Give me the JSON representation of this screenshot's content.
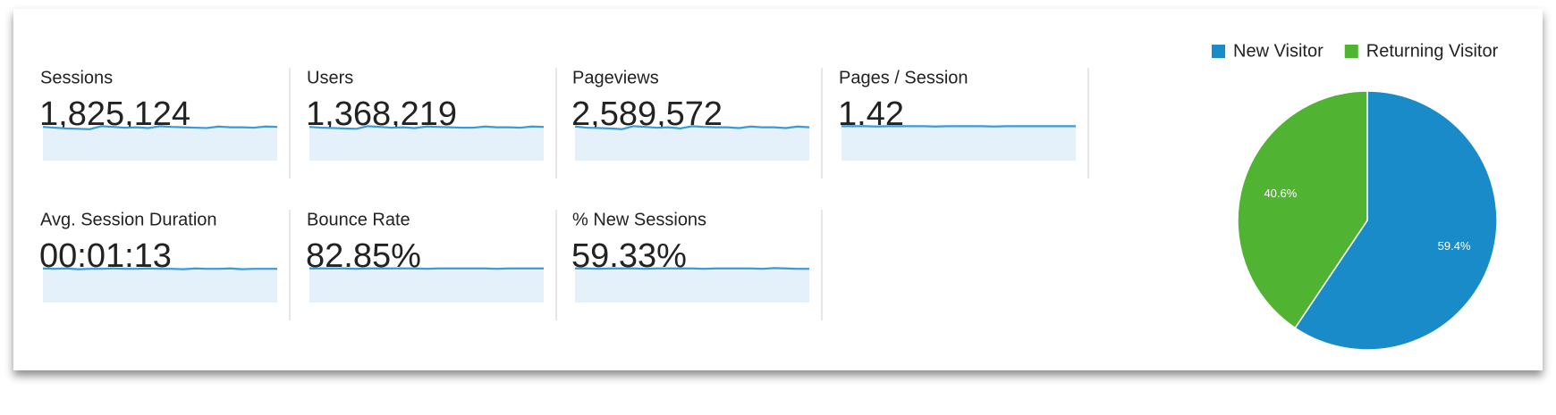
{
  "metrics": [
    {
      "label": "Sessions",
      "value": "1,825,124",
      "sparkline": [
        90,
        88,
        86,
        85,
        84,
        92,
        90,
        88,
        89,
        87,
        92,
        90,
        89,
        88,
        87,
        91,
        89,
        89,
        88,
        91,
        90
      ]
    },
    {
      "label": "Users",
      "value": "1,368,219",
      "sparkline": [
        90,
        88,
        87,
        86,
        85,
        92,
        90,
        88,
        89,
        87,
        91,
        90,
        89,
        88,
        88,
        91,
        89,
        89,
        88,
        91,
        90
      ]
    },
    {
      "label": "Pageviews",
      "value": "2,589,572",
      "sparkline": [
        91,
        88,
        87,
        86,
        84,
        92,
        90,
        88,
        89,
        86,
        92,
        90,
        89,
        89,
        87,
        91,
        89,
        89,
        87,
        91,
        89
      ]
    },
    {
      "label": "Pages / Session",
      "value": "1.42",
      "sparkline": [
        92,
        92,
        92,
        91,
        92,
        92,
        92,
        92,
        91,
        92,
        92,
        92,
        92,
        91,
        92,
        92,
        92,
        92,
        92,
        92,
        92
      ]
    },
    {
      "label": "Avg. Session Duration",
      "value": "00:01:13",
      "sparkline": [
        91,
        90,
        91,
        89,
        90,
        90,
        91,
        90,
        90,
        91,
        90,
        90,
        89,
        91,
        90,
        90,
        91,
        89,
        90,
        90,
        90
      ]
    },
    {
      "label": "Bounce Rate",
      "value": "82.85%",
      "sparkline": [
        91,
        91,
        91,
        91,
        90,
        91,
        91,
        91,
        91,
        91,
        90,
        91,
        91,
        91,
        91,
        91,
        90,
        91,
        91,
        91,
        91
      ]
    },
    {
      "label": "% New Sessions",
      "value": "59.33%",
      "sparkline": [
        91,
        91,
        90,
        91,
        91,
        91,
        90,
        91,
        91,
        91,
        91,
        90,
        91,
        91,
        91,
        91,
        90,
        92,
        91,
        90,
        90
      ]
    }
  ],
  "sparkline_ylim": [
    0,
    100
  ],
  "chart_data": {
    "type": "pie",
    "categories": [
      "New Visitor",
      "Returning Visitor"
    ],
    "values": [
      59.4,
      40.6
    ],
    "value_labels": [
      "59.4%",
      "40.6%"
    ],
    "colors": [
      "#1a8bc9",
      "#50b432"
    ],
    "legend": "top"
  }
}
